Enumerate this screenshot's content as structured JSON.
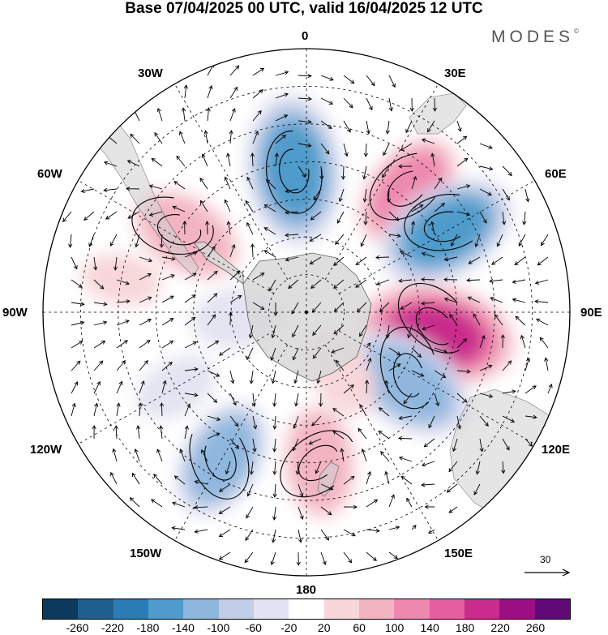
{
  "title": "Base 07/04/2025 00 UTC, valid 16/04/2025 12 UTC",
  "brand": "MODES",
  "brand_mark": "©",
  "longitude_labels": {
    "lon_0": "0",
    "lon_30e": "30E",
    "lon_60e": "60E",
    "lon_90e": "90E",
    "lon_120e": "120E",
    "lon_150e": "150E",
    "lon_180": "180",
    "lon_150w": "150W",
    "lon_120w": "120W",
    "lon_90w": "90W",
    "lon_60w": "60W",
    "lon_30w": "30W"
  },
  "vector_scale_label": "30",
  "colorbar": {
    "colors": [
      "#0b3a5c",
      "#1f5f8f",
      "#2b7cb4",
      "#4f9bcb",
      "#8fb7de",
      "#c2cde8",
      "#e3e3f2",
      "#ffffff",
      "#f8d7da",
      "#f3b4c2",
      "#ee88ae",
      "#e45ea0",
      "#c92c8c",
      "#9c0f83",
      "#5f0a77"
    ],
    "tick_labels": [
      "-260",
      "-220",
      "-180",
      "-140",
      "-100",
      "-60",
      "-20",
      "20",
      "60",
      "100",
      "140",
      "180",
      "220",
      "260"
    ]
  },
  "anomaly_centers": [
    {
      "lon": -5,
      "lat": -52,
      "level": -180
    },
    {
      "lon": 40,
      "lat": -48,
      "level": 120
    },
    {
      "lon": 60,
      "lat": -47,
      "level": -160
    },
    {
      "lon": 100,
      "lat": -55,
      "level": 200
    },
    {
      "lon": 125,
      "lat": -57,
      "level": -150
    },
    {
      "lon": -57,
      "lat": -52,
      "level": 110
    },
    {
      "lon": -95,
      "lat": -72,
      "level": -60
    },
    {
      "lon": 175,
      "lat": -50,
      "level": 100
    },
    {
      "lon": -150,
      "lat": -45,
      "level": -120
    },
    {
      "lon": -120,
      "lat": -50,
      "level": -40
    },
    {
      "lon": -80,
      "lat": -40,
      "level": 30
    },
    {
      "lon": 150,
      "lat": -72,
      "level": 60
    }
  ]
}
